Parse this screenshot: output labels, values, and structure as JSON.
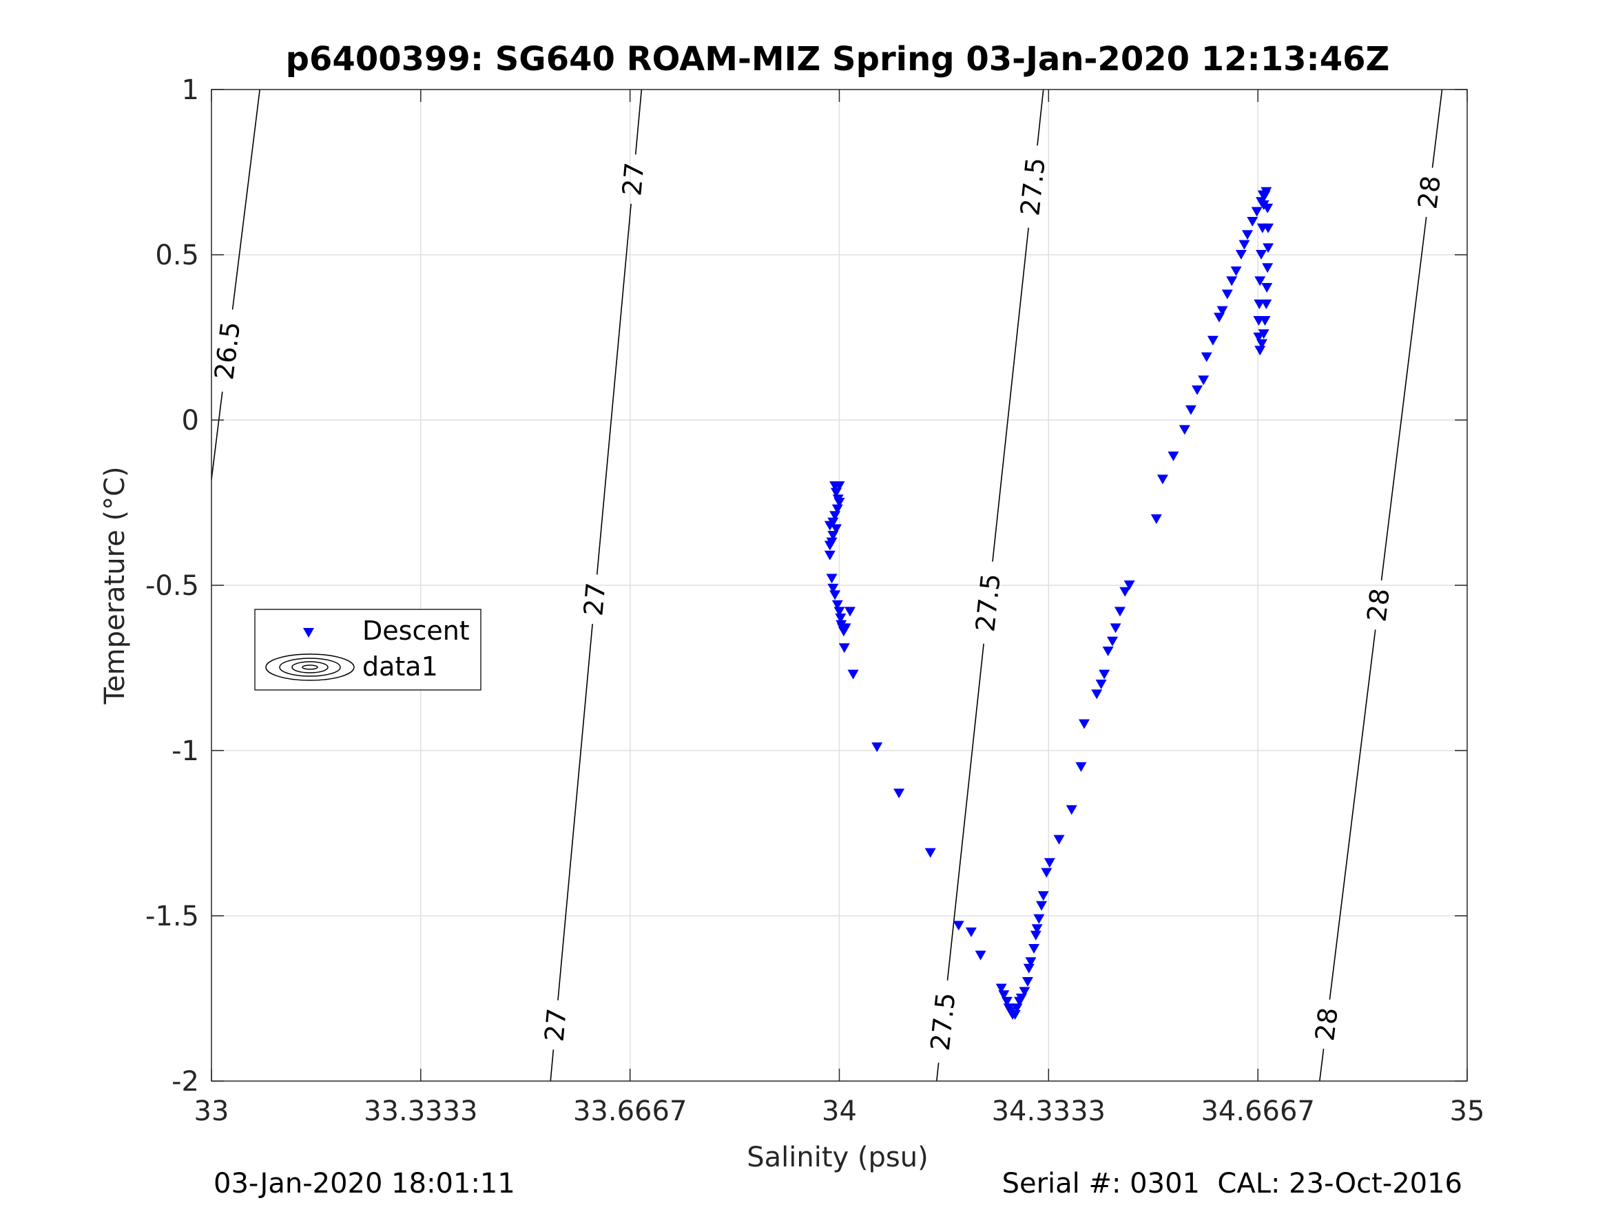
{
  "chart_data": {
    "type": "scatter",
    "title": "p6400399: SG640 ROAM-MIZ Spring 03-Jan-2020 12:13:46Z",
    "xlabel": "Salinity (psu)",
    "ylabel": "Temperature (°C)",
    "xlim": [
      33,
      35
    ],
    "ylim": [
      -2,
      1
    ],
    "grid": true,
    "xticks": [
      33,
      33.3333,
      33.6667,
      34,
      34.3333,
      34.6667,
      35
    ],
    "xtick_labels": [
      "33",
      "33.3333",
      "33.6667",
      "34",
      "34.3333",
      "34.6667",
      "35"
    ],
    "yticks": [
      1,
      0.5,
      0,
      -0.5,
      -1,
      -1.5,
      -2
    ],
    "ytick_labels": [
      "1",
      "0.5",
      "0",
      "-0.5",
      "-1",
      "-1.5",
      "-2"
    ],
    "legend": {
      "placement": "middle-left",
      "entries": [
        {
          "label": "Descent",
          "marker": "triangle-down",
          "color": "#0000ff"
        },
        {
          "label": "data1",
          "marker": "contour",
          "color": "#000000"
        }
      ]
    },
    "contours": [
      {
        "level": "26.5",
        "points": [
          [
            33.0,
            -0.18
          ],
          [
            33.077,
            1.0
          ]
        ],
        "labels": [
          {
            "x": 33.025,
            "y": 0.21
          }
        ]
      },
      {
        "level": "27",
        "points": [
          [
            33.54,
            -2.0
          ],
          [
            33.685,
            1.0
          ]
        ],
        "labels": [
          {
            "x": 33.665,
            "y": 0.73
          },
          {
            "x": 33.598,
            "y": -0.54
          },
          {
            "x": 33.547,
            "y": -1.83
          }
        ]
      },
      {
        "level": "27.5",
        "points": [
          [
            34.155,
            -2.0
          ],
          [
            34.325,
            1.0
          ]
        ],
        "labels": [
          {
            "x": 34.29,
            "y": 0.71
          },
          {
            "x": 34.225,
            "y": -0.55
          },
          {
            "x": 34.165,
            "y": -1.82
          }
        ]
      },
      {
        "level": "28",
        "points": [
          [
            34.765,
            -2.0
          ],
          [
            34.96,
            1.0
          ]
        ],
        "labels": [
          {
            "x": 34.935,
            "y": 0.69
          },
          {
            "x": 34.86,
            "y": -0.56
          },
          {
            "x": 34.785,
            "y": -1.83
          }
        ]
      }
    ],
    "series": [
      {
        "name": "Descent",
        "color": "#0000ff",
        "marker": "triangle-down",
        "points": [
          [
            33.993,
            -0.2
          ],
          [
            34.0,
            -0.2
          ],
          [
            33.995,
            -0.22
          ],
          [
            33.998,
            -0.24
          ],
          [
            34.0,
            -0.25
          ],
          [
            33.997,
            -0.27
          ],
          [
            33.993,
            -0.29
          ],
          [
            33.99,
            -0.31
          ],
          [
            33.985,
            -0.32
          ],
          [
            33.995,
            -0.33
          ],
          [
            33.99,
            -0.35
          ],
          [
            33.988,
            -0.37
          ],
          [
            33.985,
            -0.38
          ],
          [
            33.985,
            -0.41
          ],
          [
            33.988,
            -0.48
          ],
          [
            33.99,
            -0.51
          ],
          [
            33.993,
            -0.53
          ],
          [
            33.997,
            -0.56
          ],
          [
            34.0,
            -0.58
          ],
          [
            34.002,
            -0.6
          ],
          [
            34.003,
            -0.62
          ],
          [
            34.005,
            -0.63
          ],
          [
            34.007,
            -0.64
          ],
          [
            34.01,
            -0.63
          ],
          [
            34.017,
            -0.58
          ],
          [
            34.008,
            -0.69
          ],
          [
            34.022,
            -0.77
          ],
          [
            34.06,
            -0.99
          ],
          [
            34.095,
            -1.13
          ],
          [
            34.145,
            -1.31
          ],
          [
            34.19,
            -1.53
          ],
          [
            34.21,
            -1.55
          ],
          [
            34.225,
            -1.62
          ],
          [
            34.258,
            -1.72
          ],
          [
            34.262,
            -1.74
          ],
          [
            34.267,
            -1.76
          ],
          [
            34.27,
            -1.78
          ],
          [
            34.273,
            -1.79
          ],
          [
            34.276,
            -1.8
          ],
          [
            34.28,
            -1.8
          ],
          [
            34.283,
            -1.78
          ],
          [
            34.287,
            -1.76
          ],
          [
            34.29,
            -1.75
          ],
          [
            34.295,
            -1.73
          ],
          [
            34.3,
            -1.7
          ],
          [
            34.302,
            -1.66
          ],
          [
            34.305,
            -1.64
          ],
          [
            34.31,
            -1.6
          ],
          [
            34.313,
            -1.56
          ],
          [
            34.315,
            -1.54
          ],
          [
            34.318,
            -1.51
          ],
          [
            34.322,
            -1.47
          ],
          [
            34.325,
            -1.44
          ],
          [
            34.33,
            -1.37
          ],
          [
            34.335,
            -1.34
          ],
          [
            34.35,
            -1.27
          ],
          [
            34.37,
            -1.18
          ],
          [
            34.385,
            -1.05
          ],
          [
            34.39,
            -0.92
          ],
          [
            34.41,
            -0.83
          ],
          [
            34.417,
            -0.8
          ],
          [
            34.422,
            -0.77
          ],
          [
            34.428,
            -0.7
          ],
          [
            34.435,
            -0.67
          ],
          [
            34.44,
            -0.63
          ],
          [
            34.447,
            -0.58
          ],
          [
            34.455,
            -0.52
          ],
          [
            34.462,
            -0.5
          ],
          [
            34.505,
            -0.3
          ],
          [
            34.515,
            -0.18
          ],
          [
            34.532,
            -0.11
          ],
          [
            34.55,
            -0.03
          ],
          [
            34.56,
            0.03
          ],
          [
            34.57,
            0.09
          ],
          [
            34.58,
            0.12
          ],
          [
            34.585,
            0.19
          ],
          [
            34.595,
            0.24
          ],
          [
            34.605,
            0.31
          ],
          [
            34.61,
            0.33
          ],
          [
            34.618,
            0.38
          ],
          [
            34.625,
            0.42
          ],
          [
            34.632,
            0.45
          ],
          [
            34.64,
            0.5
          ],
          [
            34.645,
            0.53
          ],
          [
            34.65,
            0.56
          ],
          [
            34.658,
            0.6
          ],
          [
            34.665,
            0.63
          ],
          [
            34.672,
            0.66
          ],
          [
            34.675,
            0.68
          ],
          [
            34.68,
            0.69
          ],
          [
            34.682,
            0.64
          ],
          [
            34.683,
            0.58
          ],
          [
            34.683,
            0.52
          ],
          [
            34.682,
            0.46
          ],
          [
            34.681,
            0.4
          ],
          [
            34.68,
            0.35
          ],
          [
            34.678,
            0.3
          ],
          [
            34.676,
            0.26
          ],
          [
            34.673,
            0.23
          ],
          [
            34.67,
            0.21
          ],
          [
            34.668,
            0.25
          ],
          [
            34.668,
            0.3
          ],
          [
            34.669,
            0.35
          ],
          [
            34.67,
            0.42
          ],
          [
            34.672,
            0.5
          ],
          [
            34.674,
            0.58
          ],
          [
            34.676,
            0.65
          ],
          [
            34.678,
            0.68
          ]
        ]
      }
    ]
  },
  "footer": {
    "date_stamp": "03-Jan-2020 18:01:11",
    "serial_cal": "Serial #: 0301  CAL: 23-Oct-2016"
  }
}
